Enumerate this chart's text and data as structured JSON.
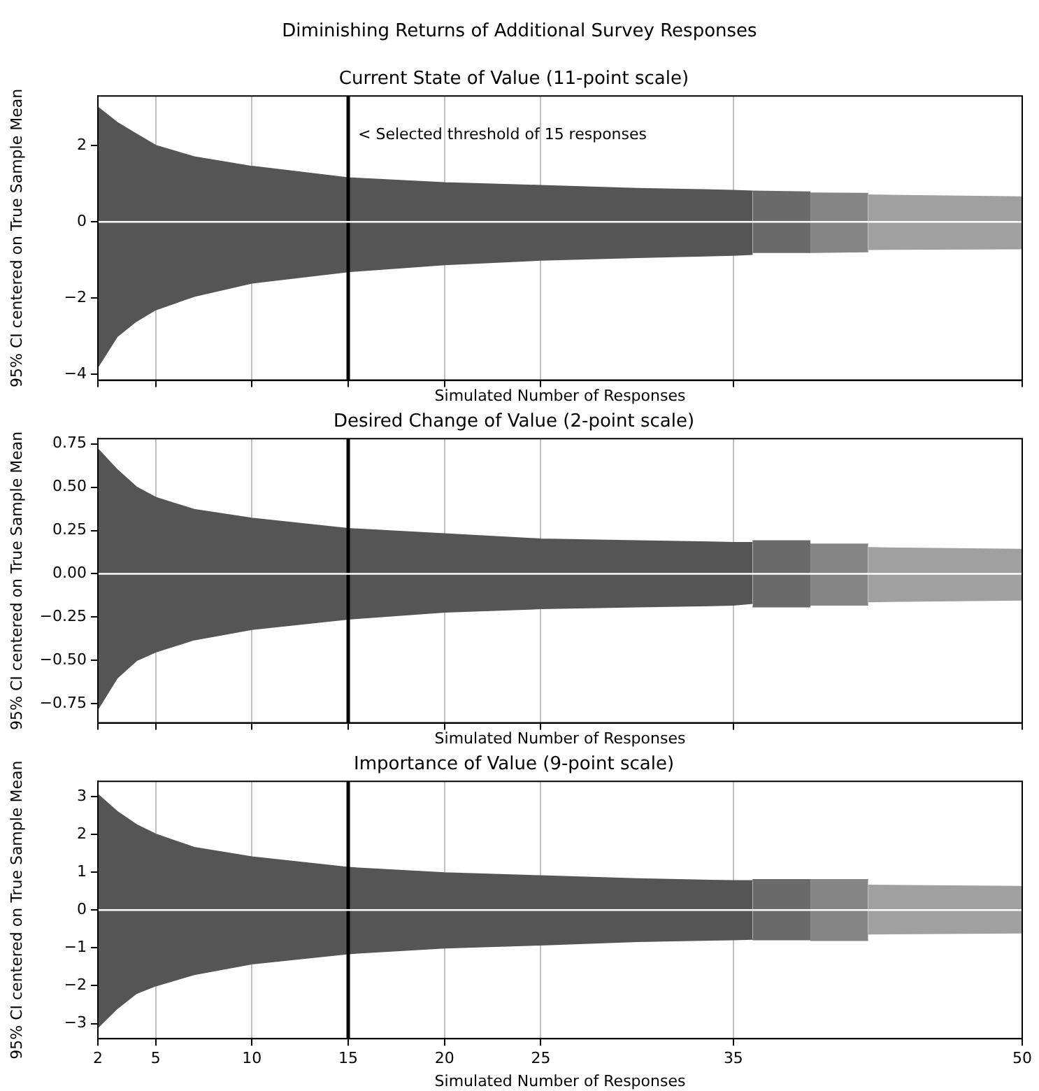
{
  "chart_data": [
    {
      "type": "area",
      "title": "Current State of Value (11-point scale)",
      "xlabel": "Simulated Number of Responses",
      "ylabel": "95% CI centered on True Sample Mean",
      "annotations": [
        "Diminishing Returns of Additional Survey Responses"
      ],
      "xlim": [
        2,
        50
      ],
      "xticks": [
        2,
        5,
        10,
        15,
        20,
        25,
        35,
        50
      ],
      "ylim": [
        -4.15,
        3.3
      ],
      "yticks": [
        {
          "value": -4,
          "label": "−4"
        },
        {
          "value": -2,
          "label": "−2"
        },
        0,
        2
      ],
      "grid": "x",
      "tick_labels": "y",
      "ref_lines": [
        {
          "axis": "x",
          "value": 15,
          "label": "< Selected threshold of 15 responses",
          "color": "#000000"
        },
        {
          "axis": "y",
          "value": 0,
          "color": "#ffffff"
        }
      ],
      "series": [
        {
          "color": "#555555",
          "x": [
            2,
            3,
            4,
            5,
            7,
            10,
            15,
            20,
            25,
            30,
            35,
            36
          ],
          "values": [
            3.0,
            2.6,
            2.3,
            2.0,
            1.7,
            1.45,
            1.15,
            1.02,
            0.95,
            0.87,
            0.82,
            0.8
          ]
        },
        {
          "color": "#555555",
          "x": [
            2,
            3,
            4,
            5,
            7,
            10,
            15,
            20,
            25,
            30,
            35,
            36
          ],
          "values": [
            -3.8,
            -3.0,
            -2.6,
            -2.3,
            -1.95,
            -1.6,
            -1.3,
            -1.12,
            -1.0,
            -0.93,
            -0.87,
            -0.85
          ]
        },
        {
          "color": "#6a6a6a",
          "x": [
            36,
            39
          ],
          "values": [
            0.8,
            0.78
          ]
        },
        {
          "color": "#6a6a6a",
          "x": [
            36,
            39
          ],
          "values": [
            -0.8,
            -0.8
          ]
        },
        {
          "color": "#858585",
          "x": [
            39,
            42
          ],
          "values": [
            0.75,
            0.74
          ]
        },
        {
          "color": "#858585",
          "x": [
            39,
            42
          ],
          "values": [
            -0.8,
            -0.78
          ]
        },
        {
          "color": "#a0a0a0",
          "x": [
            42,
            50
          ],
          "values": [
            0.7,
            0.65
          ]
        },
        {
          "color": "#a0a0a0",
          "x": [
            42,
            50
          ],
          "values": [
            -0.72,
            -0.7
          ]
        }
      ]
    },
    {
      "type": "area",
      "title": "Desired Change of Value (2-point scale)",
      "xlabel": "Simulated Number of Responses",
      "ylabel": "95% CI centered on True Sample Mean",
      "xlim": [
        2,
        50
      ],
      "xticks": [
        2,
        5,
        10,
        15,
        20,
        25,
        35,
        50
      ],
      "ylim": [
        -0.86,
        0.78
      ],
      "yticks": [
        {
          "value": -0.75,
          "label": "−0.75"
        },
        {
          "value": -0.5,
          "label": "−0.50"
        },
        {
          "value": -0.25,
          "label": "−0.25"
        },
        {
          "value": 0,
          "label": "0.00"
        },
        0.25,
        {
          "value": 0.5,
          "label": "0.50"
        },
        0.75
      ],
      "grid": "x",
      "tick_labels": "y",
      "ref_lines": [
        {
          "axis": "x",
          "value": 15,
          "color": "#000000"
        },
        {
          "axis": "y",
          "value": 0,
          "color": "#ffffff"
        }
      ],
      "series": [
        {
          "color": "#555555",
          "x": [
            2,
            3,
            4,
            5,
            7,
            10,
            15,
            20,
            25,
            30,
            35,
            36
          ],
          "values": [
            0.72,
            0.6,
            0.5,
            0.44,
            0.37,
            0.32,
            0.26,
            0.23,
            0.2,
            0.19,
            0.18,
            0.18
          ]
        },
        {
          "color": "#555555",
          "x": [
            2,
            3,
            4,
            5,
            7,
            10,
            15,
            20,
            25,
            30,
            35,
            36
          ],
          "values": [
            -0.78,
            -0.6,
            -0.5,
            -0.45,
            -0.38,
            -0.32,
            -0.26,
            -0.22,
            -0.2,
            -0.19,
            -0.18,
            -0.17
          ]
        },
        {
          "color": "#6a6a6a",
          "x": [
            36,
            39
          ],
          "values": [
            0.19,
            0.19
          ]
        },
        {
          "color": "#6a6a6a",
          "x": [
            36,
            39
          ],
          "values": [
            -0.19,
            -0.19
          ]
        },
        {
          "color": "#858585",
          "x": [
            39,
            42
          ],
          "values": [
            0.17,
            0.17
          ]
        },
        {
          "color": "#858585",
          "x": [
            39,
            42
          ],
          "values": [
            -0.18,
            -0.18
          ]
        },
        {
          "color": "#a0a0a0",
          "x": [
            42,
            50
          ],
          "values": [
            0.15,
            0.14
          ]
        },
        {
          "color": "#a0a0a0",
          "x": [
            42,
            50
          ],
          "values": [
            -0.16,
            -0.15
          ]
        }
      ]
    },
    {
      "type": "area",
      "title": "Importance of Value (9-point scale)",
      "xlabel": "Simulated Number of Responses",
      "ylabel": "95% CI centered on True Sample Mean",
      "xlim": [
        2,
        50
      ],
      "xticks": [
        2,
        5,
        10,
        15,
        20,
        25,
        35,
        50
      ],
      "ylim": [
        -3.4,
        3.4
      ],
      "yticks": [
        {
          "value": -3,
          "label": "−3"
        },
        {
          "value": -2,
          "label": "−2"
        },
        {
          "value": -1,
          "label": "−1"
        },
        0,
        1,
        2,
        3
      ],
      "grid": "x",
      "ref_lines": [
        {
          "axis": "x",
          "value": 15,
          "color": "#000000"
        },
        {
          "axis": "y",
          "value": 0,
          "color": "#ffffff"
        }
      ],
      "series": [
        {
          "color": "#555555",
          "x": [
            2,
            3,
            4,
            5,
            7,
            10,
            15,
            20,
            25,
            30,
            35,
            36
          ],
          "values": [
            3.05,
            2.6,
            2.25,
            2.0,
            1.65,
            1.4,
            1.12,
            0.98,
            0.9,
            0.82,
            0.77,
            0.77
          ]
        },
        {
          "color": "#555555",
          "x": [
            2,
            3,
            4,
            5,
            7,
            10,
            15,
            20,
            25,
            30,
            35,
            36
          ],
          "values": [
            -3.1,
            -2.6,
            -2.2,
            -2.0,
            -1.7,
            -1.42,
            -1.15,
            -1.0,
            -0.92,
            -0.83,
            -0.78,
            -0.77
          ]
        },
        {
          "color": "#6a6a6a",
          "x": [
            36,
            39
          ],
          "values": [
            0.8,
            0.8
          ]
        },
        {
          "color": "#6a6a6a",
          "x": [
            36,
            39
          ],
          "values": [
            -0.78,
            -0.78
          ]
        },
        {
          "color": "#858585",
          "x": [
            39,
            42
          ],
          "values": [
            0.8,
            0.8
          ]
        },
        {
          "color": "#858585",
          "x": [
            39,
            42
          ],
          "values": [
            -0.8,
            -0.8
          ]
        },
        {
          "color": "#a0a0a0",
          "x": [
            42,
            50
          ],
          "values": [
            0.65,
            0.62
          ]
        },
        {
          "color": "#a0a0a0",
          "x": [
            42,
            50
          ],
          "values": [
            -0.63,
            -0.6
          ]
        }
      ]
    }
  ]
}
